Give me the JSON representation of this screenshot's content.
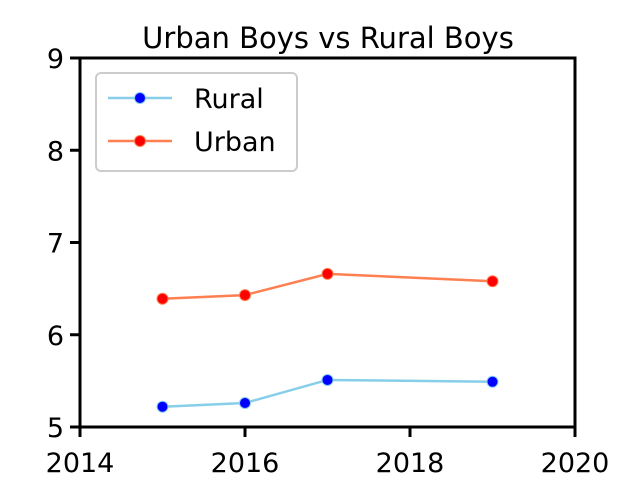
{
  "chart_data": {
    "type": "line",
    "title": "Urban Boys vs Rural Boys",
    "xlabel": "",
    "ylabel": "",
    "xlim": [
      2014,
      2020
    ],
    "ylim": [
      5,
      9
    ],
    "x_ticks": [
      2014,
      2016,
      2018,
      2020
    ],
    "y_ticks": [
      5,
      6,
      7,
      8,
      9
    ],
    "x_tick_labels": [
      "2014",
      "2016",
      "2018",
      "2020"
    ],
    "y_tick_labels": [
      "5",
      "6",
      "7",
      "8",
      "9"
    ],
    "grid": false,
    "legend_position": "top-left",
    "series": [
      {
        "name": "Rural",
        "x": [
          2015,
          2016,
          2017,
          2019
        ],
        "y": [
          5.22,
          5.26,
          5.51,
          5.49
        ],
        "line_color": "#87CEEB",
        "marker_color": "#0000FF"
      },
      {
        "name": "Urban",
        "x": [
          2015,
          2016,
          2017,
          2019
        ],
        "y": [
          6.39,
          6.43,
          6.66,
          6.58
        ],
        "line_color": "#FF7F50",
        "marker_color": "#FF0000"
      }
    ]
  }
}
